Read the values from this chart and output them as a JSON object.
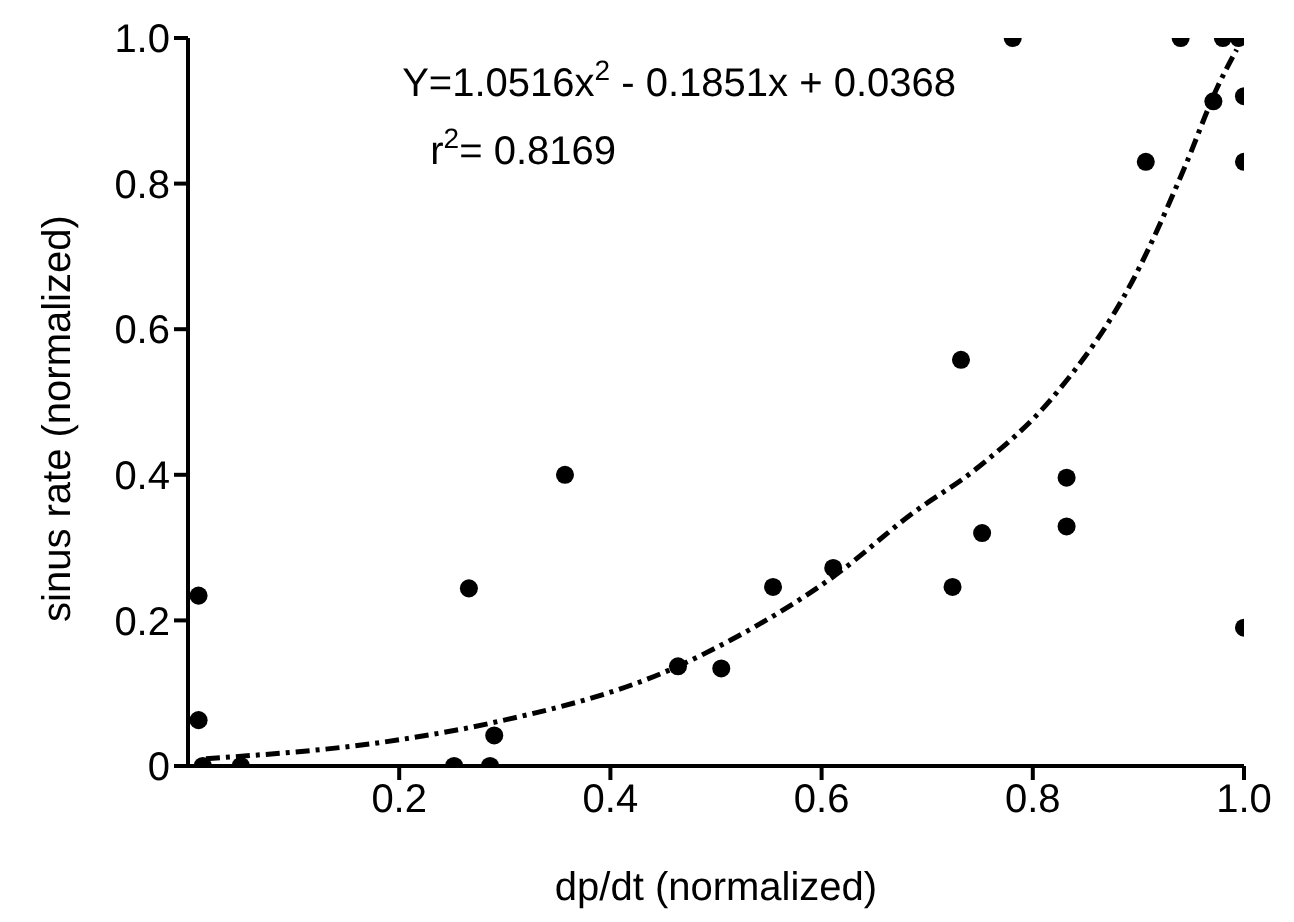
{
  "chart_data": {
    "type": "scatter",
    "xlabel": "dp/dt (normalized)",
    "ylabel": "sinus rate (normalized)",
    "annotations": [
      "Y=1.0516x$^{2}$ - 0.1851x + 0.0368",
      "r$^{2}$= 0.8169"
    ],
    "xlim": [
      0,
      1
    ],
    "xticks": [
      0.2,
      0.4,
      0.6,
      0.8,
      {
        "value": 1,
        "label": "1.0"
      }
    ],
    "ylim": [
      0,
      1
    ],
    "yticks": [
      0,
      0.2,
      0.4,
      0.6,
      0.8,
      {
        "value": 1,
        "label": "1.0"
      }
    ],
    "grid": false,
    "legend": false,
    "marker": "circle",
    "series": [
      {
        "type": "scatter",
        "color": "#000000",
        "x": [
          0.01,
          0.01,
          0.014,
          0.05,
          0.266,
          0.357,
          0.252,
          0.286,
          0.29,
          0.464,
          0.505,
          0.554,
          0.611,
          0.724,
          0.732,
          0.752,
          0.832,
          0.832,
          0.781,
          0.907,
          0.94,
          0.971,
          0.98,
          0.995,
          1.0,
          1.0,
          1.0
        ],
        "values": [
          0.234,
          0.063,
          0,
          0,
          0.244,
          0.4,
          0,
          0,
          0.042,
          0.137,
          0.134,
          0.246,
          0.272,
          0.246,
          0.558,
          0.32,
          0.396,
          0.329,
          1.0,
          0.83,
          1.0,
          0.913,
          1.0,
          1.0,
          0.92,
          0.83,
          0.19
        ]
      },
      {
        "type": "line",
        "color": "#000000",
        "line_style": "dashdot",
        "marker": "none",
        "x": [
          0.017,
          0.2,
          0.287,
          0.464,
          0.514,
          0.611,
          0.686,
          0.748,
          0.821,
          0.895,
          0.944,
          0.975,
          0.993
        ],
        "values": [
          0.01,
          0.036,
          0.059,
          0.137,
          0.173,
          0.26,
          0.347,
          0.41,
          0.51,
          0.668,
          0.823,
          0.933,
          0.984
        ]
      }
    ]
  }
}
